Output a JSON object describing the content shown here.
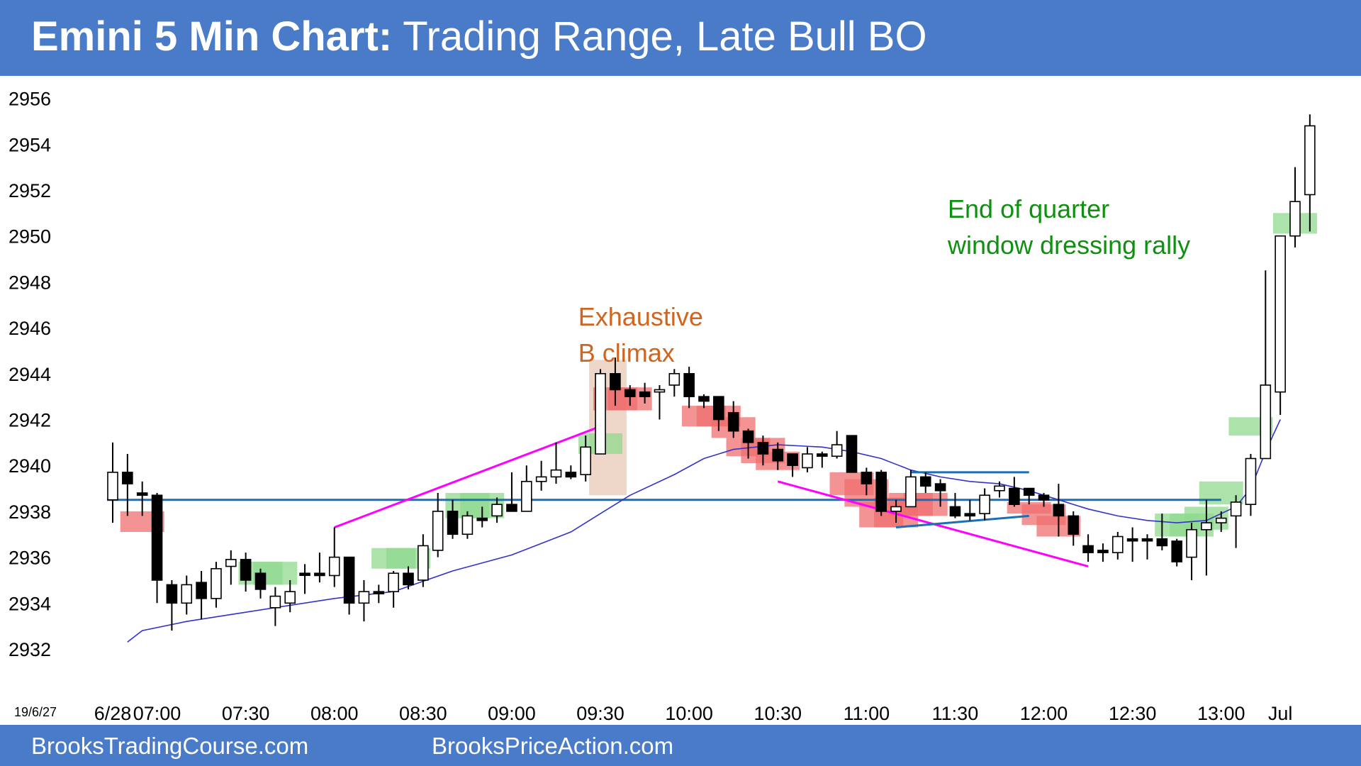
{
  "title": {
    "bold": "Emini 5 Min Chart:",
    "rest": " Trading Range, Late Bull BO"
  },
  "footer": {
    "left": "BrooksTradingCourse.com",
    "right": "BrooksPriceAction.com"
  },
  "colors": {
    "header": "#4a7bc8",
    "bull_bar_highlight": "#8fd98f",
    "bear_bar_highlight": "#ef6f6f",
    "ema": "#3333cc",
    "trendline": "#ff00ff",
    "level_line": "#1a6fb5",
    "annotation_green": "#109010",
    "annotation_orange": "#d0651f"
  },
  "chart_data": {
    "type": "candlestick",
    "date_label": "19/6/27",
    "y_ticks": [
      2932,
      2934,
      2936,
      2938,
      2940,
      2942,
      2944,
      2946,
      2948,
      2950,
      2952,
      2954,
      2956
    ],
    "ylim": [
      2931,
      2957
    ],
    "x_ticks": [
      {
        "bar": 0,
        "label": "6/28"
      },
      {
        "bar": 3,
        "label": "07:00"
      },
      {
        "bar": 9,
        "label": "07:30"
      },
      {
        "bar": 15,
        "label": "08:00"
      },
      {
        "bar": 21,
        "label": "08:30"
      },
      {
        "bar": 27,
        "label": "09:00"
      },
      {
        "bar": 33,
        "label": "09:30"
      },
      {
        "bar": 39,
        "label": "10:00"
      },
      {
        "bar": 45,
        "label": "10:30"
      },
      {
        "bar": 51,
        "label": "11:00"
      },
      {
        "bar": 57,
        "label": "11:30"
      },
      {
        "bar": 63,
        "label": "12:00"
      },
      {
        "bar": 69,
        "label": "12:30"
      },
      {
        "bar": 75,
        "label": "13:00"
      },
      {
        "bar": 79,
        "label": "Jul"
      }
    ],
    "bars": [
      {
        "o": 2938.5,
        "h": 2941.0,
        "l": 2937.5,
        "c": 2939.7
      },
      {
        "o": 2939.7,
        "h": 2940.5,
        "l": 2937.8,
        "c": 2939.2
      },
      {
        "o": 2938.8,
        "h": 2939.3,
        "l": 2937.8,
        "c": 2938.7
      },
      {
        "o": 2938.7,
        "h": 2938.8,
        "l": 2934.0,
        "c": 2935.0
      },
      {
        "o": 2934.8,
        "h": 2935.0,
        "l": 2932.8,
        "c": 2934.0
      },
      {
        "o": 2934.0,
        "h": 2935.2,
        "l": 2933.5,
        "c": 2934.8
      },
      {
        "o": 2934.9,
        "h": 2935.4,
        "l": 2933.3,
        "c": 2934.2
      },
      {
        "o": 2934.2,
        "h": 2935.8,
        "l": 2933.8,
        "c": 2935.5
      },
      {
        "o": 2935.6,
        "h": 2936.3,
        "l": 2934.8,
        "c": 2935.9
      },
      {
        "o": 2935.9,
        "h": 2936.2,
        "l": 2934.5,
        "c": 2935.0
      },
      {
        "o": 2935.3,
        "h": 2935.5,
        "l": 2934.2,
        "c": 2934.6
      },
      {
        "o": 2933.8,
        "h": 2934.7,
        "l": 2933.0,
        "c": 2934.3
      },
      {
        "o": 2934.0,
        "h": 2935.0,
        "l": 2933.6,
        "c": 2934.5
      },
      {
        "o": 2935.3,
        "h": 2935.7,
        "l": 2934.4,
        "c": 2935.3
      },
      {
        "o": 2935.3,
        "h": 2936.2,
        "l": 2934.9,
        "c": 2935.2
      },
      {
        "o": 2935.2,
        "h": 2937.3,
        "l": 2934.7,
        "c": 2936.0
      },
      {
        "o": 2936.0,
        "h": 2936.0,
        "l": 2933.5,
        "c": 2934.0
      },
      {
        "o": 2934.0,
        "h": 2935.0,
        "l": 2933.2,
        "c": 2934.5
      },
      {
        "o": 2934.5,
        "h": 2934.8,
        "l": 2934.0,
        "c": 2934.5
      },
      {
        "o": 2934.5,
        "h": 2935.4,
        "l": 2933.8,
        "c": 2935.3
      },
      {
        "o": 2935.3,
        "h": 2935.6,
        "l": 2934.6,
        "c": 2934.8
      },
      {
        "o": 2935.0,
        "h": 2937.0,
        "l": 2934.7,
        "c": 2936.5
      },
      {
        "o": 2936.3,
        "h": 2938.8,
        "l": 2936.0,
        "c": 2938.0
      },
      {
        "o": 2938.0,
        "h": 2938.5,
        "l": 2936.8,
        "c": 2937.0
      },
      {
        "o": 2937.0,
        "h": 2938.0,
        "l": 2936.8,
        "c": 2937.8
      },
      {
        "o": 2937.7,
        "h": 2938.2,
        "l": 2937.3,
        "c": 2937.6
      },
      {
        "o": 2937.8,
        "h": 2938.6,
        "l": 2937.5,
        "c": 2938.3
      },
      {
        "o": 2938.3,
        "h": 2939.7,
        "l": 2938.0,
        "c": 2938.0
      },
      {
        "o": 2938.0,
        "h": 2940.0,
        "l": 2938.0,
        "c": 2939.3
      },
      {
        "o": 2939.3,
        "h": 2940.2,
        "l": 2938.9,
        "c": 2939.5
      },
      {
        "o": 2939.5,
        "h": 2941.0,
        "l": 2939.2,
        "c": 2939.8
      },
      {
        "o": 2939.7,
        "h": 2940.0,
        "l": 2939.4,
        "c": 2939.5
      },
      {
        "o": 2939.6,
        "h": 2941.3,
        "l": 2939.3,
        "c": 2940.8
      },
      {
        "o": 2940.5,
        "h": 2944.2,
        "l": 2940.5,
        "c": 2944.0
      },
      {
        "o": 2944.0,
        "h": 2944.7,
        "l": 2942.6,
        "c": 2943.3
      },
      {
        "o": 2943.3,
        "h": 2943.5,
        "l": 2942.6,
        "c": 2943.0
      },
      {
        "o": 2943.2,
        "h": 2943.6,
        "l": 2942.7,
        "c": 2943.0
      },
      {
        "o": 2943.2,
        "h": 2943.5,
        "l": 2942.0,
        "c": 2943.3
      },
      {
        "o": 2943.5,
        "h": 2944.2,
        "l": 2943.0,
        "c": 2944.0
      },
      {
        "o": 2944.0,
        "h": 2944.3,
        "l": 2942.5,
        "c": 2943.0
      },
      {
        "o": 2943.0,
        "h": 2943.1,
        "l": 2942.5,
        "c": 2942.8
      },
      {
        "o": 2943.0,
        "h": 2943.0,
        "l": 2941.5,
        "c": 2942.0
      },
      {
        "o": 2942.3,
        "h": 2942.8,
        "l": 2941.2,
        "c": 2941.5
      },
      {
        "o": 2941.5,
        "h": 2941.6,
        "l": 2940.3,
        "c": 2941.0
      },
      {
        "o": 2941.0,
        "h": 2941.3,
        "l": 2940.0,
        "c": 2940.5
      },
      {
        "o": 2940.7,
        "h": 2941.0,
        "l": 2939.8,
        "c": 2940.2
      },
      {
        "o": 2940.5,
        "h": 2940.5,
        "l": 2939.5,
        "c": 2940.0
      },
      {
        "o": 2939.9,
        "h": 2940.8,
        "l": 2939.7,
        "c": 2940.5
      },
      {
        "o": 2940.5,
        "h": 2940.6,
        "l": 2939.9,
        "c": 2940.4
      },
      {
        "o": 2940.4,
        "h": 2941.5,
        "l": 2940.3,
        "c": 2940.9
      },
      {
        "o": 2941.3,
        "h": 2941.3,
        "l": 2939.7,
        "c": 2939.7
      },
      {
        "o": 2939.7,
        "h": 2939.9,
        "l": 2938.7,
        "c": 2939.2
      },
      {
        "o": 2939.7,
        "h": 2939.8,
        "l": 2937.8,
        "c": 2938.0
      },
      {
        "o": 2938.0,
        "h": 2938.5,
        "l": 2937.5,
        "c": 2938.2
      },
      {
        "o": 2938.2,
        "h": 2939.8,
        "l": 2938.2,
        "c": 2939.5
      },
      {
        "o": 2939.5,
        "h": 2939.7,
        "l": 2938.8,
        "c": 2939.1
      },
      {
        "o": 2939.2,
        "h": 2939.4,
        "l": 2938.2,
        "c": 2938.9
      },
      {
        "o": 2938.2,
        "h": 2938.8,
        "l": 2937.7,
        "c": 2937.8
      },
      {
        "o": 2937.9,
        "h": 2938.5,
        "l": 2937.6,
        "c": 2937.8
      },
      {
        "o": 2937.9,
        "h": 2939.0,
        "l": 2937.6,
        "c": 2938.7
      },
      {
        "o": 2938.9,
        "h": 2939.3,
        "l": 2938.6,
        "c": 2939.1
      },
      {
        "o": 2939.0,
        "h": 2939.5,
        "l": 2938.2,
        "c": 2938.3
      },
      {
        "o": 2939.0,
        "h": 2939.0,
        "l": 2938.3,
        "c": 2938.7
      },
      {
        "o": 2938.7,
        "h": 2938.8,
        "l": 2938.2,
        "c": 2938.5
      },
      {
        "o": 2938.3,
        "h": 2939.2,
        "l": 2936.9,
        "c": 2937.8
      },
      {
        "o": 2937.8,
        "h": 2938.0,
        "l": 2936.5,
        "c": 2937.0
      },
      {
        "o": 2936.5,
        "h": 2937.0,
        "l": 2935.8,
        "c": 2936.2
      },
      {
        "o": 2936.3,
        "h": 2936.6,
        "l": 2935.8,
        "c": 2936.2
      },
      {
        "o": 2936.2,
        "h": 2937.1,
        "l": 2935.9,
        "c": 2936.9
      },
      {
        "o": 2936.8,
        "h": 2937.3,
        "l": 2935.8,
        "c": 2936.8
      },
      {
        "o": 2936.8,
        "h": 2937.0,
        "l": 2935.9,
        "c": 2936.8
      },
      {
        "o": 2936.8,
        "h": 2937.9,
        "l": 2936.3,
        "c": 2936.5
      },
      {
        "o": 2936.7,
        "h": 2936.8,
        "l": 2935.6,
        "c": 2935.8
      },
      {
        "o": 2936.0,
        "h": 2937.5,
        "l": 2935.0,
        "c": 2937.2
      },
      {
        "o": 2937.2,
        "h": 2938.5,
        "l": 2935.2,
        "c": 2937.5
      },
      {
        "o": 2937.5,
        "h": 2938.0,
        "l": 2937.1,
        "c": 2937.7
      },
      {
        "o": 2937.8,
        "h": 2938.7,
        "l": 2936.4,
        "c": 2938.4
      },
      {
        "o": 2938.3,
        "h": 2940.5,
        "l": 2937.8,
        "c": 2940.3
      },
      {
        "o": 2940.3,
        "h": 2948.5,
        "l": 2940.3,
        "c": 2943.5
      },
      {
        "o": 2943.2,
        "h": 2949.9,
        "l": 2942.2,
        "c": 2950.0
      },
      {
        "o": 2950.0,
        "h": 2953.0,
        "l": 2949.5,
        "c": 2951.5
      },
      {
        "o": 2951.8,
        "h": 2955.3,
        "l": 2950.2,
        "c": 2954.8
      }
    ],
    "ema": [
      [
        1,
        2932.3
      ],
      [
        2,
        2932.8
      ],
      [
        5,
        2933.2
      ],
      [
        9,
        2933.6
      ],
      [
        15,
        2934.2
      ],
      [
        19,
        2934.5
      ],
      [
        23,
        2935.4
      ],
      [
        27,
        2936.1
      ],
      [
        31,
        2937.1
      ],
      [
        33,
        2937.9
      ],
      [
        35,
        2938.7
      ],
      [
        38,
        2939.6
      ],
      [
        40,
        2940.3
      ],
      [
        42,
        2940.7
      ],
      [
        45,
        2940.9
      ],
      [
        48,
        2940.8
      ],
      [
        50,
        2940.6
      ],
      [
        52,
        2940.3
      ],
      [
        54,
        2939.8
      ],
      [
        56,
        2939.5
      ],
      [
        58,
        2939.3
      ],
      [
        60,
        2939.2
      ],
      [
        62,
        2938.9
      ],
      [
        64,
        2938.5
      ],
      [
        66,
        2938.1
      ],
      [
        68,
        2937.8
      ],
      [
        70,
        2937.6
      ],
      [
        72,
        2937.5
      ],
      [
        74,
        2937.6
      ],
      [
        76,
        2938.2
      ],
      [
        77,
        2939.0
      ],
      [
        78,
        2940.6
      ],
      [
        79,
        2942.0
      ]
    ],
    "horizontal_line": 2938.5,
    "highlights": [
      {
        "bar": 2,
        "low": 2937.1,
        "high": 2938.0,
        "color": "red"
      },
      {
        "bar": 10,
        "low": 2934.8,
        "high": 2935.8,
        "color": "green"
      },
      {
        "bar": 11,
        "low": 2934.8,
        "high": 2935.8,
        "color": "green"
      },
      {
        "bar": 19,
        "low": 2935.5,
        "high": 2936.4,
        "color": "green"
      },
      {
        "bar": 20,
        "low": 2935.5,
        "high": 2936.4,
        "color": "green"
      },
      {
        "bar": 24,
        "low": 2937.7,
        "high": 2938.8,
        "color": "green"
      },
      {
        "bar": 25,
        "low": 2937.7,
        "high": 2938.8,
        "color": "green"
      },
      {
        "bar": 33,
        "low": 2940.5,
        "high": 2941.4,
        "color": "green"
      },
      {
        "bar": 34,
        "low": 2942.4,
        "high": 2943.4,
        "color": "red"
      },
      {
        "bar": 35,
        "low": 2942.4,
        "high": 2943.4,
        "color": "red"
      },
      {
        "bar": 40,
        "low": 2941.7,
        "high": 2942.6,
        "color": "red"
      },
      {
        "bar": 41,
        "low": 2941.7,
        "high": 2942.6,
        "color": "red"
      },
      {
        "bar": 42,
        "low": 2941.2,
        "high": 2942.1,
        "color": "red"
      },
      {
        "bar": 43,
        "low": 2940.4,
        "high": 2941.2,
        "color": "red"
      },
      {
        "bar": 44,
        "low": 2940.1,
        "high": 2941.2,
        "color": "red"
      },
      {
        "bar": 45,
        "low": 2939.8,
        "high": 2940.6,
        "color": "red"
      },
      {
        "bar": 50,
        "low": 2938.7,
        "high": 2939.7,
        "color": "red"
      },
      {
        "bar": 51,
        "low": 2938.2,
        "high": 2939.4,
        "color": "red"
      },
      {
        "bar": 52,
        "low": 2937.3,
        "high": 2938.4,
        "color": "red"
      },
      {
        "bar": 53,
        "low": 2937.3,
        "high": 2938.6,
        "color": "red"
      },
      {
        "bar": 54,
        "low": 2937.8,
        "high": 2938.8,
        "color": "red"
      },
      {
        "bar": 55,
        "low": 2937.8,
        "high": 2938.8,
        "color": "red"
      },
      {
        "bar": 62,
        "low": 2937.9,
        "high": 2938.4,
        "color": "red"
      },
      {
        "bar": 63,
        "low": 2937.4,
        "high": 2938.3,
        "color": "red"
      },
      {
        "bar": 64,
        "low": 2936.9,
        "high": 2937.8,
        "color": "red"
      },
      {
        "bar": 72,
        "low": 2936.9,
        "high": 2937.9,
        "color": "green"
      },
      {
        "bar": 73,
        "low": 2936.9,
        "high": 2937.9,
        "color": "green"
      },
      {
        "bar": 74,
        "low": 2937.2,
        "high": 2938.2,
        "color": "green"
      },
      {
        "bar": 75,
        "low": 2938.3,
        "high": 2939.3,
        "color": "green"
      },
      {
        "bar": 77,
        "low": 2941.3,
        "high": 2942.1,
        "color": "green"
      },
      {
        "bar": 80,
        "low": 2950.1,
        "high": 2951.0,
        "color": "green"
      }
    ],
    "climax_box": {
      "bar_from": 33,
      "bar_to": 34,
      "low": 2938.7,
      "high": 2944.6
    },
    "trendlines": [
      {
        "color": "magenta",
        "from": {
          "bar": 15,
          "y": 2937.3
        },
        "to": {
          "bar": 33,
          "y": 2941.7
        }
      },
      {
        "color": "magenta",
        "from": {
          "bar": 45,
          "y": 2939.3
        },
        "to": {
          "bar": 66,
          "y": 2935.6
        }
      },
      {
        "color": "blue",
        "from": {
          "bar": 53,
          "y": 2937.3
        },
        "to": {
          "bar": 62,
          "y": 2937.8
        }
      },
      {
        "color": "blue",
        "from": {
          "bar": 54,
          "y": 2939.7
        },
        "to": {
          "bar": 62,
          "y": 2939.7
        }
      }
    ],
    "annotations": [
      {
        "lines": [
          "Exhaustive",
          "B climax"
        ],
        "color": "orange",
        "bar": 31.5,
        "y": 2946.1
      },
      {
        "lines": [
          "End of quarter",
          "window dressing rally"
        ],
        "color": "green",
        "bar": 56.5,
        "y": 2950.8
      }
    ]
  }
}
